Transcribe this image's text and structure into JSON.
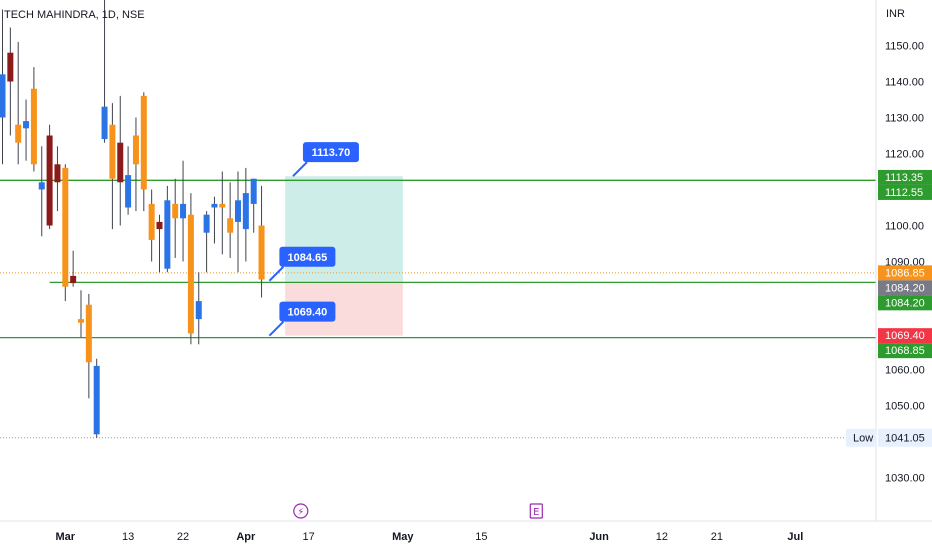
{
  "chart_data": {
    "type": "candlestick",
    "title": "TECH MAHINDRA, 1D, NSE",
    "currency": "INR",
    "ylim": [
      1022,
      1157
    ],
    "y_ticks": [
      "1150.00",
      "1140.00",
      "1130.00",
      "1120.00",
      "1110.00",
      "1100.00",
      "1090.00",
      "1080.00",
      "1070.00",
      "1060.00",
      "1050.00",
      "1040.00",
      "1030.00"
    ],
    "x_ticks": [
      {
        "label": "Mar",
        "major": true,
        "bar": 8
      },
      {
        "label": "13",
        "major": false,
        "bar": 16
      },
      {
        "label": "22",
        "major": false,
        "bar": 23
      },
      {
        "label": "Apr",
        "major": true,
        "bar": 31
      },
      {
        "label": "17",
        "major": false,
        "bar": 39
      },
      {
        "label": "May",
        "major": true,
        "bar": 51
      },
      {
        "label": "15",
        "major": false,
        "bar": 61
      },
      {
        "label": "Jun",
        "major": true,
        "bar": 76
      },
      {
        "label": "12",
        "major": false,
        "bar": 84
      },
      {
        "label": "21",
        "major": false,
        "bar": 91
      },
      {
        "label": "Jul",
        "major": true,
        "bar": 101
      }
    ],
    "candles": [
      {
        "o": 1130,
        "h": 1160,
        "l": 1117,
        "c": 1142,
        "color": "blue"
      },
      {
        "o": 1148,
        "h": 1155,
        "l": 1125,
        "c": 1140,
        "color": "darkred"
      },
      {
        "o": 1128,
        "h": 1151,
        "l": 1117,
        "c": 1123,
        "color": "orange"
      },
      {
        "o": 1127,
        "h": 1135,
        "l": 1118,
        "c": 1129,
        "color": "blue"
      },
      {
        "o": 1138,
        "h": 1144,
        "l": 1115,
        "c": 1117,
        "color": "orange"
      },
      {
        "o": 1110,
        "h": 1122,
        "l": 1097,
        "c": 1112,
        "color": "blue"
      },
      {
        "o": 1125,
        "h": 1128,
        "l": 1099,
        "c": 1100,
        "color": "darkred"
      },
      {
        "o": 1117,
        "h": 1122,
        "l": 1104,
        "c": 1112,
        "color": "darkred"
      },
      {
        "o": 1116,
        "h": 1117,
        "l": 1079,
        "c": 1083,
        "color": "orange"
      },
      {
        "o": 1086,
        "h": 1093,
        "l": 1083,
        "c": 1084,
        "color": "darkred"
      },
      {
        "o": 1074,
        "h": 1082,
        "l": 1069,
        "c": 1073,
        "color": "orange"
      },
      {
        "o": 1078,
        "h": 1081,
        "l": 1052,
        "c": 1062,
        "color": "orange"
      },
      {
        "o": 1042,
        "h": 1063,
        "l": 1041,
        "c": 1061,
        "color": "blue"
      },
      {
        "o": 1124,
        "h": 1186,
        "l": 1123,
        "c": 1133,
        "color": "blue"
      },
      {
        "o": 1128,
        "h": 1134,
        "l": 1099,
        "c": 1113,
        "color": "orange"
      },
      {
        "o": 1123,
        "h": 1136,
        "l": 1100,
        "c": 1112,
        "color": "darkred"
      },
      {
        "o": 1105,
        "h": 1122,
        "l": 1103,
        "c": 1114,
        "color": "blue"
      },
      {
        "o": 1125,
        "h": 1130,
        "l": 1104,
        "c": 1117,
        "color": "orange"
      },
      {
        "o": 1136,
        "h": 1137,
        "l": 1104,
        "c": 1110,
        "color": "orange"
      },
      {
        "o": 1106,
        "h": 1110,
        "l": 1090,
        "c": 1096,
        "color": "orange"
      },
      {
        "o": 1101,
        "h": 1103,
        "l": 1087,
        "c": 1099,
        "color": "darkred"
      },
      {
        "o": 1088,
        "h": 1111,
        "l": 1087,
        "c": 1107,
        "color": "blue"
      },
      {
        "o": 1106,
        "h": 1113,
        "l": 1091,
        "c": 1102,
        "color": "orange"
      },
      {
        "o": 1102,
        "h": 1118,
        "l": 1090,
        "c": 1106,
        "color": "blue"
      },
      {
        "o": 1103,
        "h": 1109,
        "l": 1067,
        "c": 1070,
        "color": "orange"
      },
      {
        "o": 1074,
        "h": 1087,
        "l": 1067,
        "c": 1079,
        "color": "blue"
      },
      {
        "o": 1098,
        "h": 1104,
        "l": 1087,
        "c": 1103,
        "color": "blue"
      },
      {
        "o": 1105,
        "h": 1108,
        "l": 1095,
        "c": 1106,
        "color": "blue"
      },
      {
        "o": 1106,
        "h": 1115,
        "l": 1092,
        "c": 1105,
        "color": "orange"
      },
      {
        "o": 1098,
        "h": 1112,
        "l": 1091,
        "c": 1102,
        "color": "orange"
      },
      {
        "o": 1101,
        "h": 1115,
        "l": 1087,
        "c": 1107,
        "color": "blue"
      },
      {
        "o": 1109,
        "h": 1116,
        "l": 1090,
        "c": 1099,
        "color": "blue"
      },
      {
        "o": 1106,
        "h": 1113,
        "l": 1098,
        "c": 1113,
        "color": "blue"
      },
      {
        "o": 1100,
        "h": 1111,
        "l": 1080,
        "c": 1085,
        "color": "orange"
      }
    ],
    "horizontal_lines": [
      {
        "value": 1112.55,
        "start_bar": -9,
        "color": "#2e9b2e"
      },
      {
        "value": 1084.2,
        "start_bar": 6,
        "color": "#2e9b2e"
      },
      {
        "value": 1068.85,
        "start_bar": -2,
        "color": "#2e9b2e"
      }
    ],
    "position_zone": {
      "start_bar": 36,
      "end_bar": 51,
      "entry": 1084.65,
      "target": 1113.7,
      "stop": 1069.4,
      "profit_color": "#cdeee8",
      "loss_color": "#fbdcdc"
    },
    "callouts": [
      {
        "label": "1113.70",
        "value": 1113.7,
        "bar": 37
      },
      {
        "label": "1084.65",
        "value": 1084.65,
        "bar": 34
      },
      {
        "label": "1069.40",
        "value": 1069.4,
        "bar": 34
      }
    ],
    "last_price_line": {
      "value": 1086.85,
      "color": "#f7931a"
    },
    "low_line": {
      "value": 1041.05,
      "label": "Low"
    },
    "axis_badges": [
      {
        "label": "1113.35",
        "value": 1113.35,
        "bg": "#2e9b2e"
      },
      {
        "label": "1112.55",
        "value": 1112.55,
        "bg": "#2e9b2e"
      },
      {
        "label": "1086.85",
        "value": 1086.85,
        "bg": "#f7931a"
      },
      {
        "label": "1084.20",
        "value": 1084.2,
        "bg": "#787b86"
      },
      {
        "label": "1084.20",
        "value": 1084.2,
        "bg": "#2e9b2e"
      },
      {
        "label": "1069.40",
        "value": 1069.4,
        "bg": "#f23645"
      },
      {
        "label": "1068.85",
        "value": 1068.85,
        "bg": "#2e9b2e"
      }
    ],
    "markers": [
      {
        "type": "dividend",
        "icon": "lightning-icon",
        "glyph": "⚡",
        "bar": 38
      },
      {
        "type": "earnings",
        "icon": "earnings-icon",
        "glyph": "E",
        "bar": 68
      }
    ],
    "colors": {
      "blue": "#2a74e6",
      "orange": "#f7931a",
      "darkred": "#8b1a1a",
      "grid": "#e0e3eb",
      "text": "#131722"
    }
  }
}
